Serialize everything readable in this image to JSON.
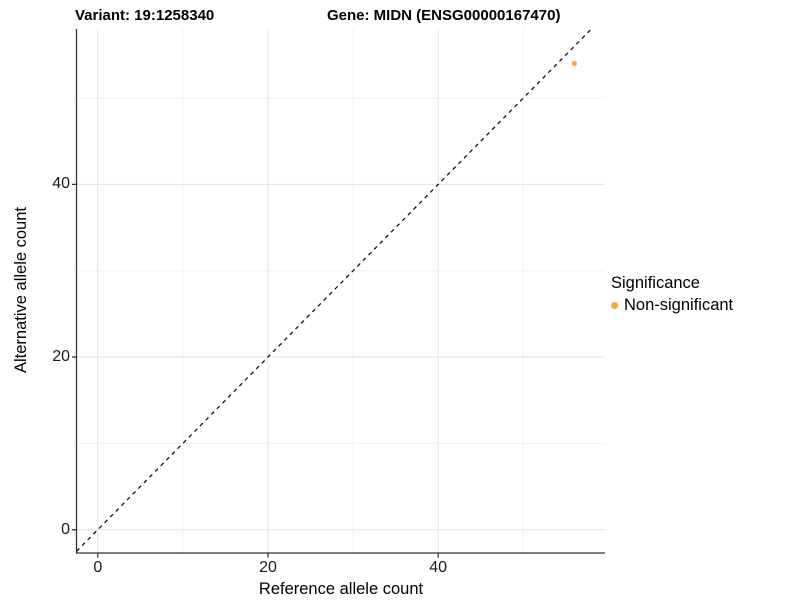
{
  "header": {
    "variant_title": "Variant: 19:1258340",
    "gene_title": "Gene: MIDN (ENSG00000167470)"
  },
  "legend": {
    "title": "Significance",
    "items": [
      {
        "label": "Non-significant",
        "color": "#FAA43A"
      }
    ]
  },
  "colors": {
    "point": "#FAA43A",
    "gridline_major": "#E3E3E3",
    "gridline_minor": "#F1F1F1",
    "axis_line": "#333333",
    "reference_line": "#000000",
    "background": "#FFFFFF"
  },
  "chart_data": {
    "type": "scatter",
    "title": "Variant: 19:1258340 — Gene: MIDN (ENSG00000167470)",
    "xlabel": "Reference allele count",
    "ylabel": "Alternative allele count",
    "xlim": [
      -2.5,
      59.6
    ],
    "ylim": [
      -2.7,
      58.0
    ],
    "x_ticks": [
      0,
      20,
      40
    ],
    "y_ticks": [
      0,
      20,
      40
    ],
    "x_tick_labels": [
      "0",
      "20",
      "40"
    ],
    "y_tick_labels": [
      "0",
      "20",
      "40"
    ],
    "x_minor_gridlines": [
      10,
      30,
      50
    ],
    "y_minor_gridlines": [
      10,
      30,
      50
    ],
    "grid": true,
    "legend_position": "right",
    "series": [
      {
        "name": "Non-significant",
        "color": "#FAA43A",
        "points": [
          {
            "x": 56,
            "y": 54
          }
        ]
      }
    ],
    "reference_line": {
      "type": "identity",
      "slope": 1,
      "intercept": 0,
      "style": "dashed",
      "color": "#000000"
    }
  }
}
